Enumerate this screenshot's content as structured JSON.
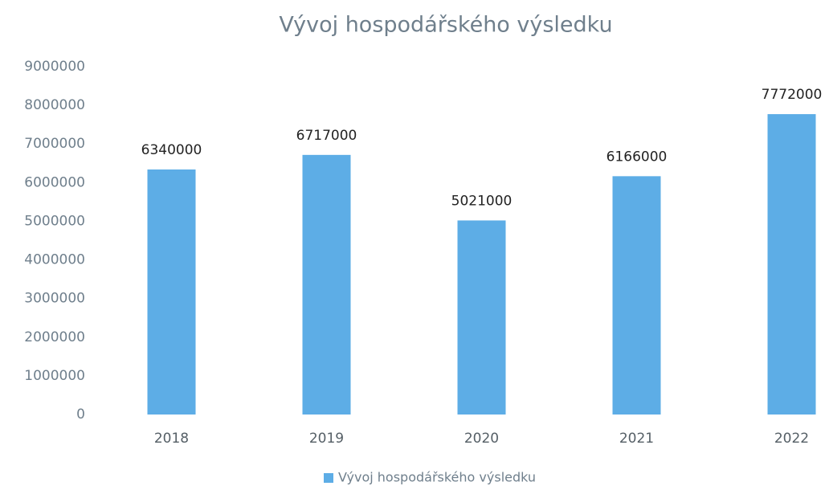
{
  "chart_data": {
    "type": "bar",
    "title": "Vývoj hospodářského výsledku",
    "categories": [
      "2018",
      "2019",
      "2020",
      "2021",
      "2022"
    ],
    "series": [
      {
        "name": "Vývoj hospodářského výsledku",
        "color": "#5dade6",
        "values": [
          6340000,
          6717000,
          5021000,
          6166000,
          7772000
        ]
      }
    ],
    "ylim": [
      0,
      9000000
    ],
    "yticks": [
      0,
      1000000,
      2000000,
      3000000,
      4000000,
      5000000,
      6000000,
      7000000,
      8000000,
      9000000
    ],
    "grid": false,
    "data_labels": true,
    "legend": "bottom"
  }
}
